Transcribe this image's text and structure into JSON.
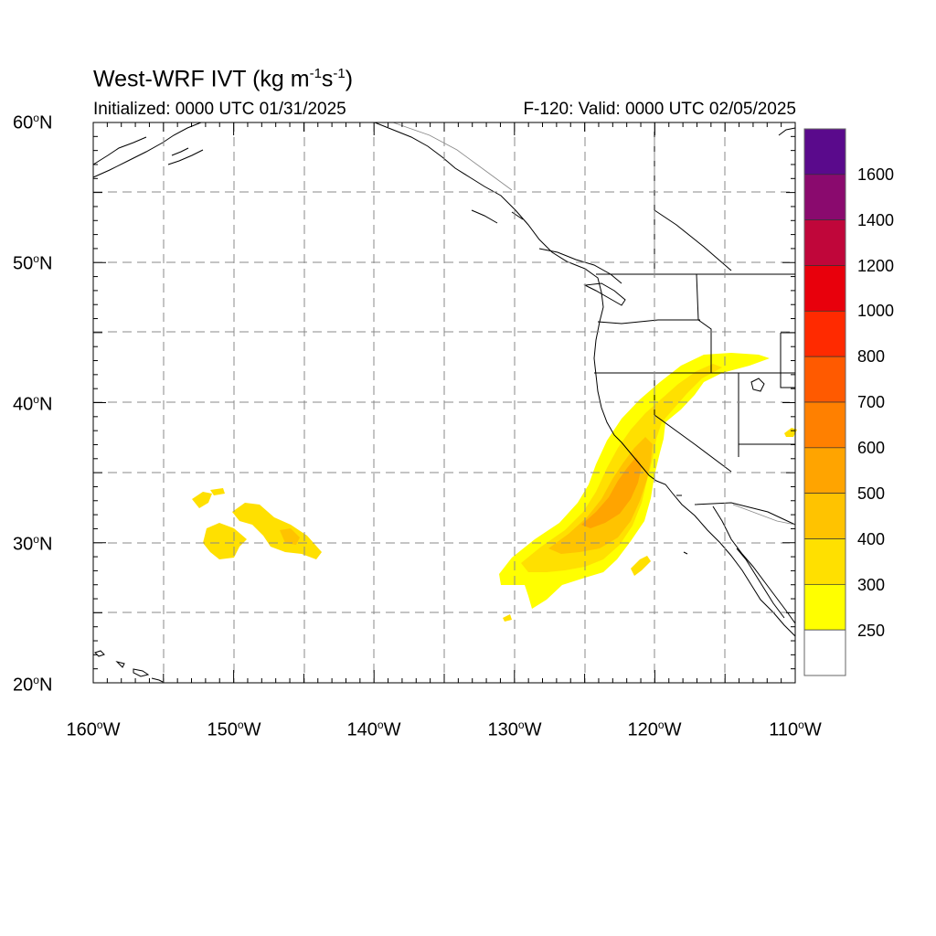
{
  "title": {
    "main": "West-WRF IVT (kg m",
    "exp1": "-1",
    "mid": "s",
    "exp2": "-1",
    "close": ")"
  },
  "subtitle_left": "Initialized: 0000 UTC 01/31/2025",
  "subtitle_right": "F-120: Valid: 0000 UTC 02/05/2025",
  "lat_labels": [
    {
      "num": "60",
      "hemi": "N"
    },
    {
      "num": "50",
      "hemi": "N"
    },
    {
      "num": "40",
      "hemi": "N"
    },
    {
      "num": "30",
      "hemi": "N"
    },
    {
      "num": "20",
      "hemi": "N"
    }
  ],
  "lon_labels": [
    {
      "num": "160",
      "hemi": "W"
    },
    {
      "num": "150",
      "hemi": "W"
    },
    {
      "num": "140",
      "hemi": "W"
    },
    {
      "num": "130",
      "hemi": "W"
    },
    {
      "num": "120",
      "hemi": "W"
    },
    {
      "num": "110",
      "hemi": "W"
    }
  ],
  "colorbar": {
    "labels": [
      "1600",
      "1400",
      "1200",
      "1000",
      "800",
      "700",
      "600",
      "500",
      "400",
      "300",
      "250"
    ],
    "colors": [
      "#5a0a8c",
      "#8a0a6e",
      "#c0063a",
      "#e8000c",
      "#ff2a00",
      "#ff5a00",
      "#ff8000",
      "#ffa400",
      "#ffc300",
      "#ffe000",
      "#ffff00",
      "#ffffff"
    ]
  },
  "map": {
    "extent": {
      "lon_min": -160,
      "lon_max": -110,
      "lat_min": 20,
      "lat_max": 60
    },
    "colors": {
      "ivt_250": "#ffff00",
      "ivt_300": "#ffe000",
      "ivt_400": "#ffc300",
      "ivt_500": "#ffa400"
    }
  }
}
